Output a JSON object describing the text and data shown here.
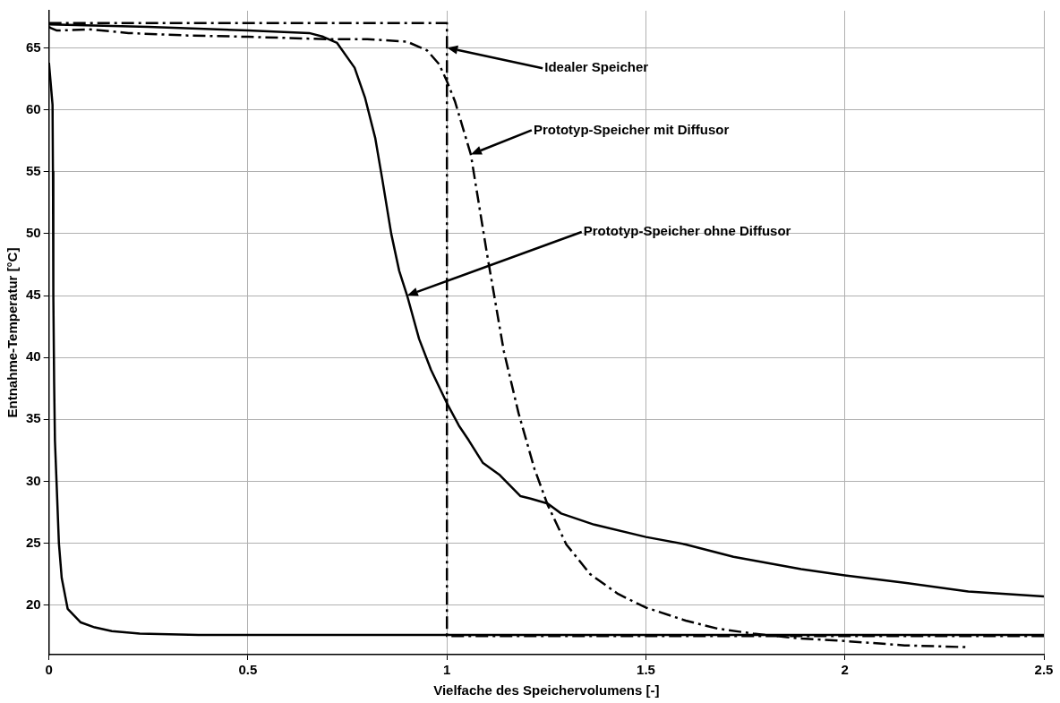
{
  "chart_data": {
    "type": "line",
    "xlabel": "Vielfache des Speichervolumens [-]",
    "ylabel": "Entnahme-Temperatur [°C]",
    "xlim": [
      0,
      2.5
    ],
    "xticks": [
      0,
      0.5,
      1,
      1.5,
      2,
      2.5
    ],
    "ylim": [
      16,
      68
    ],
    "yticks": [
      20,
      25,
      30,
      35,
      40,
      45,
      50,
      55,
      60,
      65
    ],
    "grid": true,
    "legend": false,
    "marker": "none",
    "series": [
      {
        "color": "#000000",
        "line_style": "dashed",
        "x": [
          0,
          1,
          1,
          2.5
        ],
        "values": [
          67,
          67,
          17.5,
          17.5
        ]
      },
      {
        "color": "#000000",
        "line_style": "dashed",
        "x": [
          0,
          0.005,
          0.02,
          0.1,
          0.2,
          0.35,
          0.5,
          0.7,
          0.8,
          0.9,
          0.95,
          0.98,
          1.0,
          1.02,
          1.06,
          1.1,
          1.143,
          1.18,
          1.22,
          1.253,
          1.3,
          1.36,
          1.43,
          1.5,
          1.6,
          1.68,
          1.77,
          1.89,
          2.0,
          2.15,
          2.31
        ],
        "values": [
          66.7,
          66.6,
          66.4,
          66.5,
          66.2,
          66,
          65.9,
          65.7,
          65.7,
          65.5,
          64.8,
          63.7,
          62.3,
          60.7,
          56.4,
          48.5,
          40.5,
          35.5,
          31,
          28.1,
          24.9,
          22.5,
          20.9,
          19.8,
          18.75,
          18.1,
          17.7,
          17.3,
          17.1,
          16.75,
          16.6
        ]
      },
      {
        "color": "#000000",
        "line_style": "solid",
        "x": [
          0,
          0.25,
          0.5,
          0.654,
          0.689,
          0.724,
          0.768,
          0.794,
          0.82,
          0.837,
          0.86,
          0.88,
          0.9,
          0.93,
          0.96,
          1.0,
          1.03,
          1.055,
          1.09,
          1.133,
          1.185,
          1.21,
          1.253,
          1.287,
          1.37,
          1.5,
          1.6,
          1.72,
          1.89,
          2.0,
          2.15,
          2.31,
          2.5
        ],
        "values": [
          66.9,
          66.7,
          66.4,
          66.2,
          65.9,
          65.4,
          63.4,
          61,
          57.7,
          54.5,
          50,
          47,
          45,
          41.5,
          39,
          36.3,
          34.5,
          33.3,
          31.5,
          30.5,
          28.8,
          28.6,
          28.2,
          27.4,
          26.5,
          25.5,
          24.9,
          23.9,
          22.9,
          22.4,
          21.8,
          21.1,
          20.7
        ]
      },
      {
        "color": "#000000",
        "line_style": "solid",
        "x": [
          0,
          0.009,
          0.01,
          0.011,
          0.013,
          0.015,
          0.019,
          0.025,
          0.032,
          0.047,
          0.08,
          0.115,
          0.158,
          0.228,
          0.376,
          1,
          2.5
        ],
        "values": [
          63.8,
          60.4,
          55,
          45,
          38,
          33.3,
          30,
          25,
          22.2,
          19.7,
          18.6,
          18.2,
          17.9,
          17.7,
          17.6,
          17.6,
          17.6
        ]
      }
    ],
    "annotations": [
      "Idealer Speicher",
      "Prototyp-Speicher mit Diffusor",
      "Prototyp-Speicher ohne Diffusor"
    ]
  }
}
